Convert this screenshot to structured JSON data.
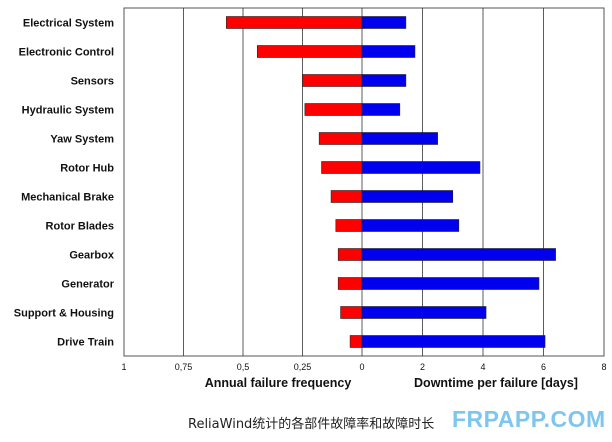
{
  "chart_data": {
    "type": "bar",
    "categories": [
      "Electrical System",
      "Electronic Control",
      "Sensors",
      "Hydraulic System",
      "Yaw System",
      "Rotor Hub",
      "Mechanical Brake",
      "Rotor Blades",
      "Gearbox",
      "Generator",
      "Support & Housing",
      "Drive Train"
    ],
    "series": [
      {
        "name": "Annual failure frequency",
        "color": "#ff0000",
        "values": [
          0.57,
          0.44,
          0.25,
          0.24,
          0.18,
          0.17,
          0.13,
          0.11,
          0.1,
          0.1,
          0.09,
          0.05
        ]
      },
      {
        "name": "Downtime per failure [days]",
        "color": "#0000ee",
        "values": [
          1.45,
          1.75,
          1.45,
          1.25,
          2.5,
          3.9,
          3.0,
          3.2,
          6.4,
          5.85,
          4.1,
          6.05
        ]
      }
    ],
    "left_axis": {
      "label": "Annual failure frequency",
      "range": [
        1,
        0
      ],
      "ticks": [
        1,
        0.75,
        0.5,
        0.25,
        0
      ],
      "tick_labels": [
        "1",
        "0,75",
        "0,5",
        "0,25",
        "0"
      ]
    },
    "right_axis": {
      "label": "Downtime per failure [days]",
      "range": [
        0,
        8
      ],
      "ticks": [
        2,
        4,
        6,
        8
      ],
      "tick_labels": [
        "2",
        "4",
        "6",
        "8"
      ]
    },
    "grid": "vertical"
  },
  "caption": "ReliaWind统计的各部件故障率和故障时长",
  "watermark": "FRPAPP.COM"
}
